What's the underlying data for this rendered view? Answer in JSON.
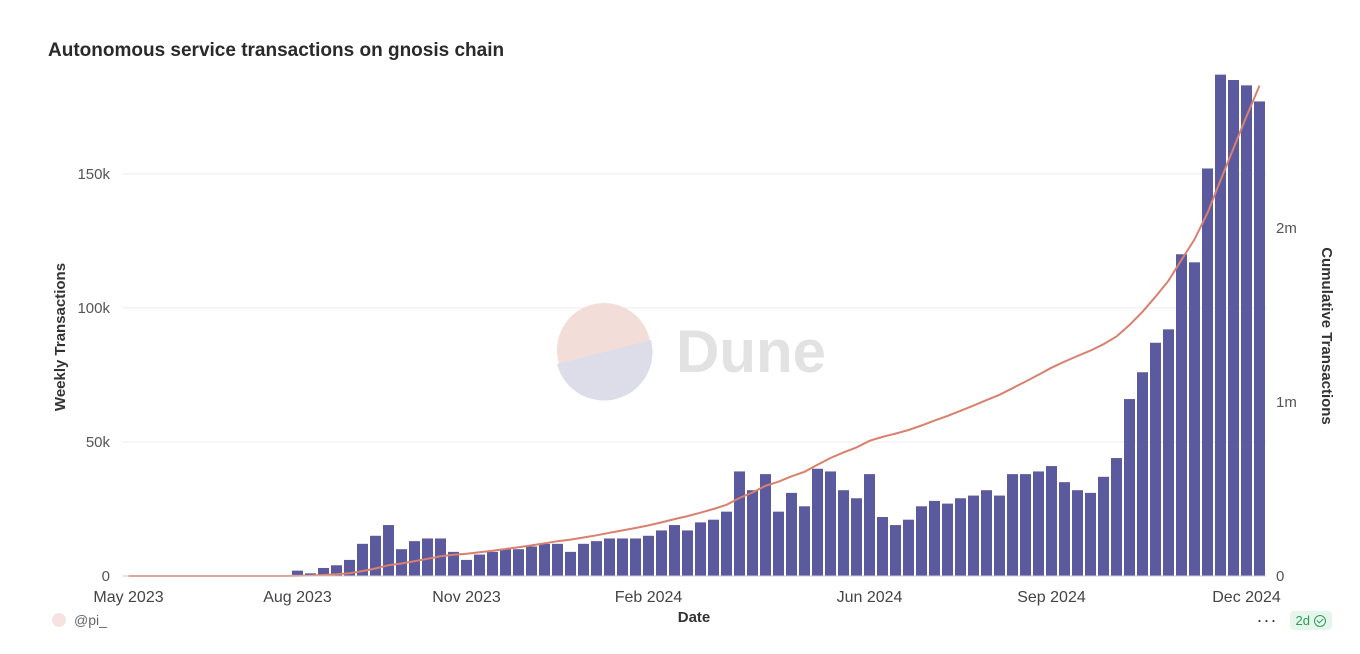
{
  "chart_data": {
    "type": "bar",
    "title": "Autonomous service transactions on gnosis chain",
    "xlabel": "Date",
    "ylabel": "Weekly Transactions",
    "y2label": "Cumulative Transactions",
    "x_ticks": [
      "May 2023",
      "Aug 2023",
      "Nov 2023",
      "Feb 2024",
      "Jun 2024",
      "Sep 2024",
      "Dec 2024"
    ],
    "y_ticks": [
      "0",
      "50k",
      "100k",
      "150k"
    ],
    "y2_ticks": [
      "0",
      "1m",
      "2m"
    ],
    "ylim": [
      0,
      185000
    ],
    "y2lim": [
      0,
      2850000
    ],
    "grid": true,
    "colors": {
      "bars": "#5c5a9e",
      "cumulative_line": "#d9806e"
    },
    "series": [
      {
        "type": "bar",
        "values": [
          0,
          0,
          0,
          0,
          0,
          0,
          0,
          0,
          0,
          0,
          0,
          0,
          0,
          2000,
          1000,
          3000,
          4000,
          6000,
          12000,
          15000,
          19000,
          10000,
          13000,
          14000,
          14000,
          9000,
          6000,
          8000,
          9000,
          10000,
          10000,
          11000,
          12000,
          12000,
          9000,
          12000,
          13000,
          14000,
          14000,
          14000,
          15000,
          17000,
          19000,
          17000,
          20000,
          21000,
          24000,
          39000,
          32000,
          38000,
          24000,
          31000,
          26000,
          40000,
          39000,
          32000,
          29000,
          38000,
          22000,
          19000,
          21000,
          26000,
          28000,
          27000,
          29000,
          30000,
          32000,
          30000,
          38000,
          38000,
          39000,
          41000,
          35000,
          32000,
          31000,
          37000,
          44000,
          66000,
          76000,
          87000,
          92000,
          120000,
          117000,
          152000,
          187000,
          185000,
          183000,
          177000
        ]
      },
      {
        "type": "line",
        "values": [
          0,
          0,
          0,
          0,
          0,
          0,
          0,
          0,
          0,
          0,
          0,
          0,
          0,
          2000,
          3000,
          6000,
          10000,
          16000,
          28000,
          43000,
          62000,
          72000,
          85000,
          99000,
          113000,
          122000,
          128000,
          136000,
          145000,
          155000,
          165000,
          176000,
          188000,
          200000,
          209000,
          221000,
          234000,
          248000,
          262000,
          276000,
          291000,
          308000,
          327000,
          344000,
          364000,
          385000,
          409000,
          448000,
          480000,
          518000,
          542000,
          573000,
          599000,
          639000,
          678000,
          710000,
          739000,
          777000,
          799000,
          818000,
          839000,
          865000,
          893000,
          920000,
          949000,
          979000,
          1011000,
          1041000,
          1079000,
          1117000,
          1156000,
          1197000,
          1232000,
          1264000,
          1295000,
          1332000,
          1376000,
          1442000,
          1518000,
          1605000,
          1697000,
          1817000,
          1934000,
          2086000,
          2273000,
          2458000,
          2641000,
          2818000
        ]
      }
    ]
  },
  "watermark": {
    "text": "Dune"
  },
  "footer": {
    "author": "@pi_",
    "more": "···",
    "age": "2d"
  }
}
